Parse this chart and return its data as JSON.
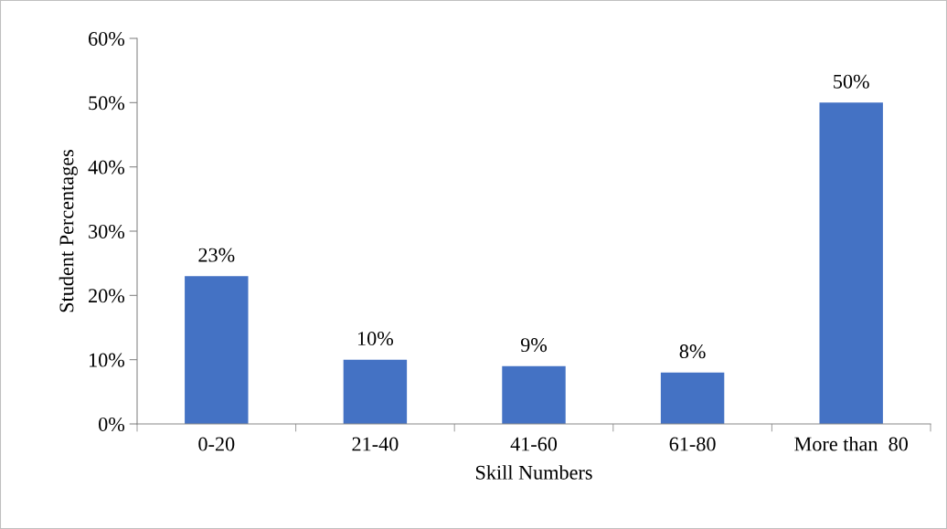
{
  "chart_data": {
    "type": "bar",
    "xlabel": "Skill Numbers",
    "ylabel": "Student Percentages",
    "categories": [
      "0-20",
      "21-40",
      "41-60",
      "61-80",
      "More than  80"
    ],
    "values": [
      23,
      10,
      9,
      8,
      50
    ],
    "color": "#4472c4",
    "value_labels": [
      "23%",
      "10%",
      "9%",
      "8%",
      "50%"
    ],
    "ylim": [
      0,
      60
    ],
    "yticks": [
      {
        "value": 0,
        "label": "0%"
      },
      {
        "value": 10,
        "label": "10%"
      },
      {
        "value": 20,
        "label": "20%"
      },
      {
        "value": 30,
        "label": "30%"
      },
      {
        "value": 40,
        "label": "40%"
      },
      {
        "value": 50,
        "label": "50%"
      },
      {
        "value": 60,
        "label": "60%"
      }
    ],
    "grid": false
  }
}
